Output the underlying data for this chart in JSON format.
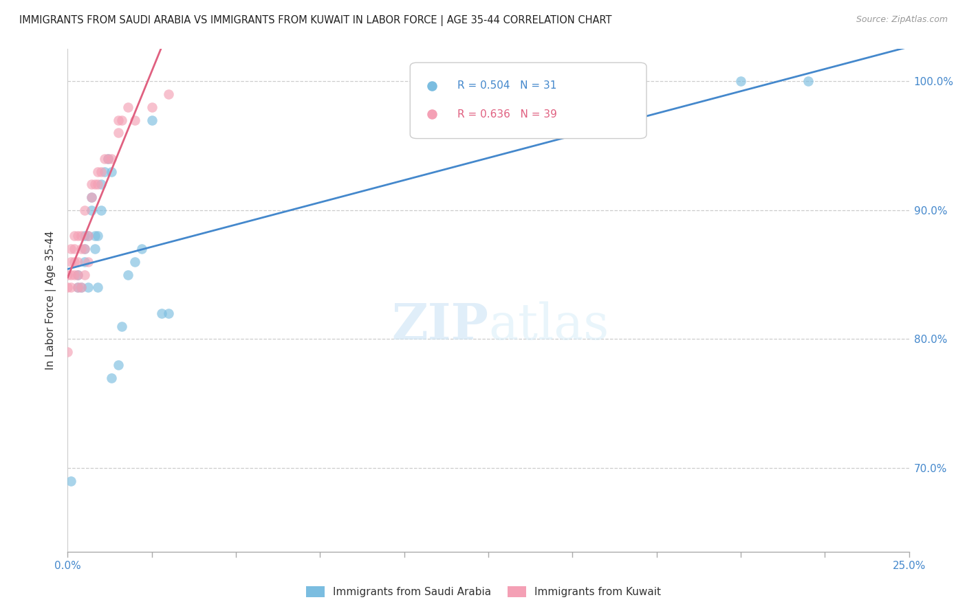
{
  "title": "IMMIGRANTS FROM SAUDI ARABIA VS IMMIGRANTS FROM KUWAIT IN LABOR FORCE | AGE 35-44 CORRELATION CHART",
  "source": "Source: ZipAtlas.com",
  "ylabel": "In Labor Force | Age 35-44",
  "yaxis_labels": [
    "100.0%",
    "90.0%",
    "80.0%",
    "70.0%"
  ],
  "yaxis_values": [
    1.0,
    0.9,
    0.8,
    0.7
  ],
  "xlim": [
    0.0,
    0.25
  ],
  "ylim": [
    0.635,
    1.025
  ],
  "watermark_zip": "ZIP",
  "watermark_atlas": "atlas",
  "legend_blue_r": "0.504",
  "legend_blue_n": "31",
  "legend_pink_r": "0.636",
  "legend_pink_n": "39",
  "blue_color": "#7bbde0",
  "pink_color": "#f4a0b5",
  "line_blue": "#4488cc",
  "line_pink": "#e06080",
  "saudi_x": [
    0.001,
    0.003,
    0.003,
    0.004,
    0.005,
    0.005,
    0.005,
    0.006,
    0.006,
    0.007,
    0.007,
    0.008,
    0.008,
    0.009,
    0.009,
    0.01,
    0.01,
    0.011,
    0.012,
    0.013,
    0.013,
    0.015,
    0.016,
    0.018,
    0.02,
    0.022,
    0.025,
    0.028,
    0.03,
    0.2,
    0.22
  ],
  "saudi_y": [
    0.69,
    0.84,
    0.85,
    0.84,
    0.86,
    0.87,
    0.88,
    0.84,
    0.88,
    0.9,
    0.91,
    0.87,
    0.88,
    0.84,
    0.88,
    0.9,
    0.92,
    0.93,
    0.94,
    0.93,
    0.77,
    0.78,
    0.81,
    0.85,
    0.86,
    0.87,
    0.97,
    0.82,
    0.82,
    1.0,
    1.0
  ],
  "kuwait_x": [
    0.0,
    0.0,
    0.0,
    0.001,
    0.001,
    0.001,
    0.001,
    0.002,
    0.002,
    0.002,
    0.002,
    0.003,
    0.003,
    0.003,
    0.003,
    0.004,
    0.004,
    0.004,
    0.005,
    0.005,
    0.005,
    0.006,
    0.006,
    0.007,
    0.007,
    0.008,
    0.009,
    0.009,
    0.01,
    0.011,
    0.012,
    0.013,
    0.015,
    0.015,
    0.016,
    0.018,
    0.02,
    0.025,
    0.03
  ],
  "kuwait_y": [
    0.79,
    0.84,
    0.85,
    0.84,
    0.85,
    0.86,
    0.87,
    0.85,
    0.86,
    0.87,
    0.88,
    0.84,
    0.85,
    0.86,
    0.88,
    0.84,
    0.87,
    0.88,
    0.85,
    0.87,
    0.9,
    0.86,
    0.88,
    0.91,
    0.92,
    0.92,
    0.92,
    0.93,
    0.93,
    0.94,
    0.94,
    0.94,
    0.96,
    0.97,
    0.97,
    0.98,
    0.97,
    0.98,
    0.99
  ],
  "xtick_positions": [
    0.0,
    0.025,
    0.05,
    0.075,
    0.1,
    0.125,
    0.15,
    0.175,
    0.2,
    0.225,
    0.25
  ],
  "blue_line_x_start": 0.0,
  "blue_line_x_end": 0.25,
  "pink_line_x_start": 0.0,
  "pink_line_x_end": 0.035
}
